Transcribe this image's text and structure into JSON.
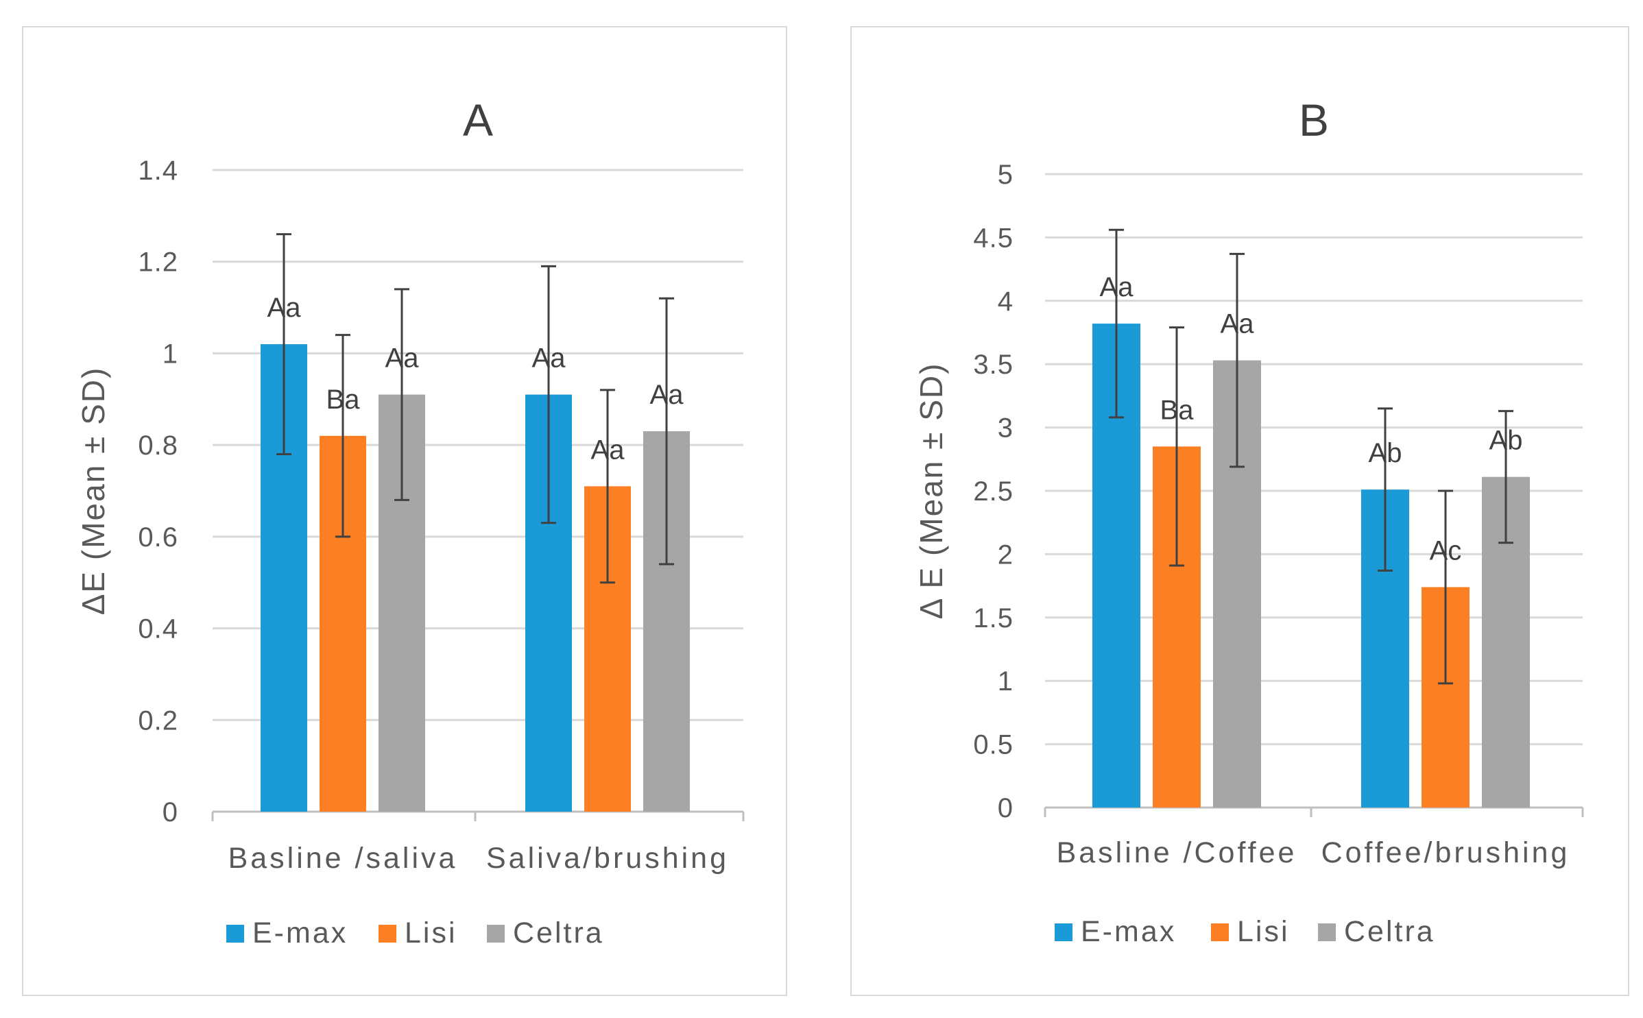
{
  "chart_data": [
    {
      "type": "bar",
      "title": "A",
      "ylabel": "ΔE (Mean ± SD)",
      "xlabel": "",
      "ylim": [
        0,
        1.4
      ],
      "yticks": [
        0,
        0.2,
        0.4,
        0.6,
        0.8,
        1,
        1.2,
        1.4
      ],
      "ytick_labels": [
        "0",
        "0.2",
        "0.4",
        "0.6",
        "0.8",
        "1",
        "1.2",
        "1.4"
      ],
      "grid": true,
      "legend": "bottom",
      "categories": [
        "Basline /saliva",
        "Saliva/brushing"
      ],
      "series": [
        {
          "name": "E-max",
          "color": "#1a9ad6",
          "values": [
            1.02,
            0.91
          ],
          "err": [
            0.24,
            0.28
          ],
          "labels": [
            "Aa",
            "Aa"
          ]
        },
        {
          "name": "Lisi",
          "color": "#fd7f23",
          "values": [
            0.82,
            0.71
          ],
          "err": [
            0.22,
            0.21
          ],
          "labels": [
            "Ba",
            "Aa"
          ]
        },
        {
          "name": "Celtra",
          "color": "#a6a6a6",
          "values": [
            0.91,
            0.83
          ],
          "err": [
            0.23,
            0.29
          ],
          "labels": [
            "Aa",
            "Aa"
          ]
        }
      ]
    },
    {
      "type": "bar",
      "title": "B",
      "ylabel": "Δ E (Mean ± SD)",
      "xlabel": "",
      "ylim": [
        0,
        5
      ],
      "yticks": [
        0,
        0.5,
        1,
        1.5,
        2,
        2.5,
        3,
        3.5,
        4,
        4.5,
        5
      ],
      "ytick_labels": [
        "0",
        "0.5",
        "1",
        "1.5",
        "2",
        "2.5",
        "3",
        "3.5",
        "4",
        "4.5",
        "5"
      ],
      "grid": true,
      "legend": "bottom",
      "categories": [
        "Basline /Coffee",
        "Coffee/brushing"
      ],
      "series": [
        {
          "name": "E-max",
          "color": "#1a9ad6",
          "values": [
            3.82,
            2.51
          ],
          "err": [
            0.74,
            0.64
          ],
          "labels": [
            "Aa",
            "Ab"
          ]
        },
        {
          "name": "Lisi",
          "color": "#fd7f23",
          "values": [
            2.85,
            1.74
          ],
          "err": [
            0.94,
            0.76
          ],
          "labels": [
            "Ba",
            "Ac"
          ]
        },
        {
          "name": "Celtra",
          "color": "#a6a6a6",
          "values": [
            3.53,
            2.61
          ],
          "err": [
            0.84,
            0.52
          ],
          "labels": [
            "Aa",
            "Ab"
          ]
        }
      ]
    }
  ]
}
